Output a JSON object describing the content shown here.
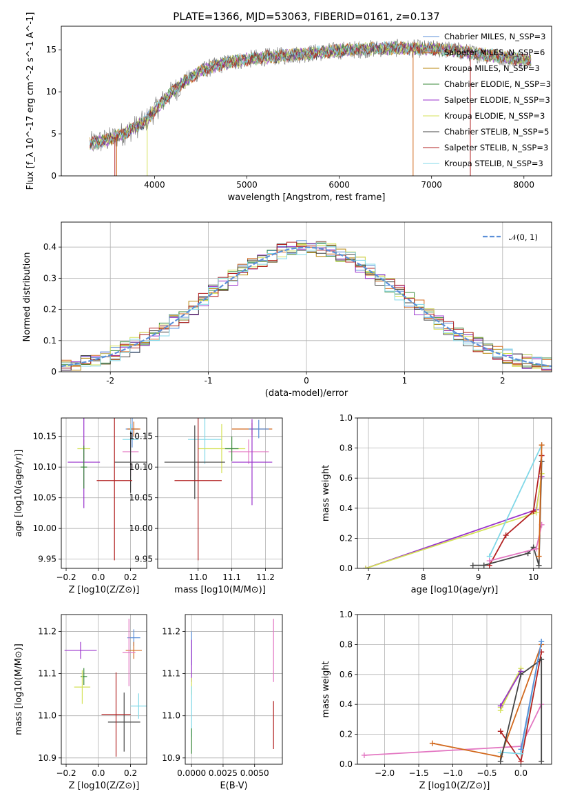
{
  "chart_data": [
    {
      "id": "spectrum",
      "type": "line",
      "title": "PLATE=1366, MJD=53063, FIBERID=0161, z=0.137",
      "xlabel": "wavelength [Angstrom, rest frame]",
      "ylabel": "Flux [f_λ 10^-17 erg cm^-2 s^-1 A^-1]",
      "xlim": [
        2990,
        8300
      ],
      "ylim": [
        0,
        17.8
      ],
      "xticks": [
        4000,
        5000,
        6000,
        7000,
        8000
      ],
      "yticks": [
        0,
        5,
        10,
        15
      ],
      "grid": false,
      "legend_position": "top-right",
      "continuum_x": [
        3300,
        3500,
        3700,
        3900,
        4100,
        4300,
        4500,
        4800,
        5100,
        5400,
        5700,
        6000,
        6300,
        6600,
        6900,
        7200,
        7500,
        7800,
        8080
      ],
      "continuum_y": [
        3.8,
        4.3,
        5.2,
        6.5,
        9.0,
        11.0,
        12.5,
        13.5,
        14.0,
        14.3,
        14.6,
        14.9,
        15.1,
        15.2,
        15.1,
        15.0,
        14.5,
        14.1,
        13.8
      ],
      "series": [
        {
          "name": "Chabrier MILES, N_SSP=3",
          "color": "#5b8fd8"
        },
        {
          "name": "Salpeter MILES, N_SSP=6",
          "color": "#d2691e"
        },
        {
          "name": "Kroupa MILES, N_SSP=3",
          "color": "#b8860b"
        },
        {
          "name": "Chabrier ELODIE, N_SSP=3",
          "color": "#3a8a3a"
        },
        {
          "name": "Salpeter ELODIE, N_SSP=3",
          "color": "#9932cc"
        },
        {
          "name": "Kroupa ELODIE, N_SSP=3",
          "color": "#d4e157"
        },
        {
          "name": "Chabrier STELIB, N_SSP=5",
          "color": "#444444"
        },
        {
          "name": "Salpeter STELIB, N_SSP=3",
          "color": "#b22222"
        },
        {
          "name": "Kroupa STELIB, N_SSP=3",
          "color": "#80d8e8"
        }
      ]
    },
    {
      "id": "residuals",
      "type": "line",
      "xlabel": "(data-model)/error",
      "ylabel": "Normed distribution",
      "xlim": [
        -2.5,
        2.5
      ],
      "ylim": [
        0,
        0.48
      ],
      "xticks": [
        -2,
        -1,
        0,
        1,
        2
      ],
      "yticks": [
        0.0,
        0.1,
        0.2,
        0.3,
        0.4
      ],
      "grid": true,
      "legend_position": "top-right",
      "legend": "𝒩(0, 1)",
      "gaussian_color": "#5b8fd8"
    },
    {
      "id": "age-vs-Z",
      "type": "scatter",
      "xlabel": "Z [log10(Z/Z⊙)]",
      "ylabel": "age [log10(age/yr)]",
      "xlim": [
        -0.23,
        0.3
      ],
      "ylim": [
        9.935,
        10.18
      ],
      "xticks": [
        -0.2,
        0.0,
        0.2
      ],
      "xticklabels": [
        "−0.2",
        "0.0",
        "0.2"
      ],
      "yticks": [
        9.95,
        10.0,
        10.05,
        10.1,
        10.15
      ],
      "yticklabels": [
        "9.95",
        "10.00",
        "10.05",
        "10.10",
        "10.15"
      ],
      "grid": true,
      "points": [
        {
          "x": 0.21,
          "y": 10.162,
          "xerr": 0.04,
          "yerr": 0.03,
          "color": "#5b8fd8"
        },
        {
          "x": 0.22,
          "y": 10.162,
          "xerr": 0.04,
          "yerr": 0.012,
          "color": "#d2691e"
        },
        {
          "x": 0.2,
          "y": 10.125,
          "xerr": 0.05,
          "yerr": 0.04,
          "color": "#e377c2"
        },
        {
          "x": 0.2,
          "y": 10.145,
          "xerr": 0.05,
          "yerr": 0.025,
          "color": "#80d8e8"
        },
        {
          "x": 0.2,
          "y": 10.108,
          "xerr": 0.1,
          "yerr": 0.05,
          "color": "#444444"
        },
        {
          "x": 0.1,
          "y": 10.078,
          "xerr": 0.11,
          "yerr": 0.13,
          "color": "#b22222"
        },
        {
          "x": -0.09,
          "y": 10.13,
          "xerr": 0.04,
          "yerr": 0.015,
          "color": "#d4e157"
        },
        {
          "x": -0.09,
          "y": 10.108,
          "xerr": 0.1,
          "yerr": 0.075,
          "color": "#9932cc"
        },
        {
          "x": -0.09,
          "y": 10.1,
          "xerr": 0.02,
          "yerr": 0.035,
          "color": "#3a8a3a"
        }
      ]
    },
    {
      "id": "age-vs-mass",
      "type": "scatter",
      "xlabel": "mass [log10(M/M⊙)]",
      "ylabel": "",
      "xlim": [
        10.88,
        11.25
      ],
      "ylim": [
        9.935,
        10.18
      ],
      "xticks": [
        11.0,
        11.1,
        11.2
      ],
      "xticklabels": [
        "11.0",
        "11.1",
        "11.2"
      ],
      "yticks": [
        9.95,
        10.0,
        10.05,
        10.1,
        10.15
      ],
      "yticklabels": [
        "9.95",
        "10.00",
        "10.05",
        "10.10",
        "10.15"
      ],
      "grid": true,
      "points": [
        {
          "x": 11.16,
          "y": 10.162,
          "xerr": 0.06,
          "yerr": 0.01,
          "color": "#d2691e"
        },
        {
          "x": 11.18,
          "y": 10.162,
          "xerr": 0.03,
          "yerr": 0.015,
          "color": "#5b8fd8"
        },
        {
          "x": 11.15,
          "y": 10.125,
          "xerr": 0.06,
          "yerr": 0.02,
          "color": "#e377c2"
        },
        {
          "x": 11.02,
          "y": 10.145,
          "xerr": 0.05,
          "yerr": 0.04,
          "color": "#80d8e8"
        },
        {
          "x": 11.07,
          "y": 10.13,
          "xerr": 0.07,
          "yerr": 0.04,
          "color": "#d4e157"
        },
        {
          "x": 11.1,
          "y": 10.13,
          "xerr": 0.02,
          "yerr": 0.02,
          "color": "#3a8a3a"
        },
        {
          "x": 11.16,
          "y": 10.108,
          "xerr": 0.06,
          "yerr": 0.07,
          "color": "#9932cc"
        },
        {
          "x": 10.99,
          "y": 10.108,
          "xerr": 0.09,
          "yerr": 0.06,
          "color": "#444444"
        },
        {
          "x": 11.0,
          "y": 10.078,
          "xerr": 0.07,
          "yerr": 0.13,
          "color": "#b22222"
        }
      ]
    },
    {
      "id": "weight-vs-age",
      "type": "line",
      "xlabel": "age [log10(age/yr)]",
      "ylabel": "mass weight",
      "xlim": [
        6.8,
        10.33
      ],
      "ylim": [
        0.0,
        1.0
      ],
      "xticks": [
        7,
        8,
        9,
        10
      ],
      "yticks": [
        0.0,
        0.2,
        0.4,
        0.6,
        0.8,
        1.0
      ],
      "yticklabels": [
        "0.0",
        "0.2",
        "0.4",
        "0.6",
        "0.8",
        "1.0"
      ],
      "grid": true,
      "series": [
        {
          "color": "#9932cc",
          "x": [
            6.95,
            10.05,
            10.15
          ],
          "y": [
            0.0,
            0.39,
            0.61
          ]
        },
        {
          "color": "#d4e157",
          "x": [
            6.95,
            10.05,
            10.15
          ],
          "y": [
            0.0,
            0.37,
            0.63
          ]
        },
        {
          "color": "#b22222",
          "x": [
            9.2,
            9.5,
            10.0,
            10.15
          ],
          "y": [
            0.02,
            0.22,
            0.38,
            0.75
          ]
        },
        {
          "color": "#80d8e8",
          "x": [
            9.2,
            10.15
          ],
          "y": [
            0.08,
            0.82
          ]
        },
        {
          "color": "#444444",
          "x": [
            8.9,
            9.1,
            9.9,
            10.0,
            10.1,
            10.15
          ],
          "y": [
            0.02,
            0.02,
            0.1,
            0.14,
            0.02,
            0.71
          ]
        },
        {
          "color": "#e377c2",
          "x": [
            9.2,
            10.05,
            10.15
          ],
          "y": [
            0.05,
            0.13,
            0.29
          ]
        },
        {
          "color": "#d2691e",
          "x": [
            10.1,
            10.15
          ],
          "y": [
            0.08,
            0.82
          ]
        }
      ]
    },
    {
      "id": "mass-vs-Z",
      "type": "scatter",
      "xlabel": "Z [log10(Z/Z⊙)]",
      "ylabel": "mass [log10(M/M⊙)]",
      "xlim": [
        -0.23,
        0.3
      ],
      "ylim": [
        10.885,
        11.24
      ],
      "xticks": [
        -0.2,
        0.0,
        0.2
      ],
      "xticklabels": [
        "−0.2",
        "0.0",
        "0.2"
      ],
      "yticks": [
        10.9,
        11.0,
        11.1,
        11.2
      ],
      "yticklabels": [
        "10.9",
        "11.0",
        "11.1",
        "11.2"
      ],
      "grid": true,
      "points": [
        {
          "x": 0.22,
          "y": 11.185,
          "xerr": 0.04,
          "yerr": 0.02,
          "color": "#5b8fd8"
        },
        {
          "x": 0.22,
          "y": 11.155,
          "xerr": 0.05,
          "yerr": 0.02,
          "color": "#d2691e"
        },
        {
          "x": 0.19,
          "y": 11.15,
          "xerr": 0.04,
          "yerr": 0.08,
          "color": "#e377c2"
        },
        {
          "x": 0.25,
          "y": 11.023,
          "xerr": 0.05,
          "yerr": 0.03,
          "color": "#80d8e8"
        },
        {
          "x": 0.16,
          "y": 10.985,
          "xerr": 0.1,
          "yerr": 0.07,
          "color": "#444444"
        },
        {
          "x": 0.11,
          "y": 11.003,
          "xerr": 0.09,
          "yerr": 0.1,
          "color": "#b22222"
        },
        {
          "x": -0.11,
          "y": 11.155,
          "xerr": 0.1,
          "yerr": 0.02,
          "color": "#9932cc"
        },
        {
          "x": -0.09,
          "y": 11.093,
          "xerr": 0.02,
          "yerr": 0.02,
          "color": "#3a8a3a"
        },
        {
          "x": -0.1,
          "y": 11.068,
          "xerr": 0.05,
          "yerr": 0.04,
          "color": "#d4e157"
        }
      ]
    },
    {
      "id": "mass-vs-ebv",
      "type": "scatter",
      "xlabel": "E(B-V)",
      "ylabel": "",
      "xlim": [
        -0.0005,
        0.0072
      ],
      "ylim": [
        10.885,
        11.24
      ],
      "xticks": [
        0.0,
        0.0025,
        0.005
      ],
      "xticklabels": [
        "0.0000",
        "0.0025",
        "0.0050"
      ],
      "yticks": [
        10.9,
        11.0,
        11.1,
        11.2
      ],
      "yticklabels": [
        "10.9",
        "11.0",
        "11.1",
        "11.2"
      ],
      "grid": true,
      "points": [
        {
          "x": 0.0,
          "y": 11.16,
          "xerr": 0.0,
          "yerr": 0.04,
          "color": "#5b8fd8"
        },
        {
          "x": 0.0,
          "y": 11.13,
          "xerr": 0.0,
          "yerr": 0.05,
          "color": "#9932cc"
        },
        {
          "x": 0.0,
          "y": 11.07,
          "xerr": 0.0,
          "yerr": 0.02,
          "color": "#d4e157"
        },
        {
          "x": 0.0,
          "y": 11.01,
          "xerr": 0.0,
          "yerr": 0.06,
          "color": "#80d8e8"
        },
        {
          "x": 0.0,
          "y": 10.94,
          "xerr": 0.0,
          "yerr": 0.03,
          "color": "#3a8a3a"
        },
        {
          "x": 0.0065,
          "y": 11.155,
          "xerr": 0.0,
          "yerr": 0.075,
          "color": "#e377c2"
        },
        {
          "x": 0.0065,
          "y": 10.978,
          "xerr": 0.0,
          "yerr": 0.057,
          "color": "#b22222"
        }
      ]
    },
    {
      "id": "weight-vs-Z",
      "type": "line",
      "xlabel": "Z [log10(Z/Z⊙)]",
      "ylabel": "mass weight",
      "xlim": [
        -2.4,
        0.45
      ],
      "ylim": [
        0.0,
        1.0
      ],
      "xticks": [
        -2.0,
        -1.5,
        -1.0,
        -0.5,
        0.0
      ],
      "xticklabels": [
        "−2.0",
        "−1.5",
        "−1.0",
        "−0.5",
        "0.0"
      ],
      "yticks": [
        0.0,
        0.2,
        0.4,
        0.6,
        0.8,
        1.0
      ],
      "yticklabels": [
        "0.0",
        "0.2",
        "0.4",
        "0.6",
        "0.8",
        "1.0"
      ],
      "grid": true,
      "series": [
        {
          "color": "#e377c2",
          "x": [
            -2.3,
            0.0,
            0.3
          ],
          "y": [
            0.06,
            0.12,
            0.4
          ]
        },
        {
          "color": "#d2691e",
          "x": [
            -1.3,
            -0.3,
            0.3
          ],
          "y": [
            0.14,
            0.05,
            0.8
          ]
        },
        {
          "color": "#d4e157",
          "x": [
            -0.3,
            0.0,
            -0.3
          ],
          "y": [
            0.38,
            0.64,
            0.36
          ]
        },
        {
          "color": "#9932cc",
          "x": [
            -0.3,
            0.0
          ],
          "y": [
            0.39,
            0.62
          ]
        },
        {
          "color": "#b22222",
          "x": [
            -0.3,
            0.0,
            0.3
          ],
          "y": [
            0.22,
            0.02,
            0.75
          ]
        },
        {
          "color": "#80d8e8",
          "x": [
            -0.3,
            0.0,
            0.3
          ],
          "y": [
            0.08,
            0.07,
            0.82
          ]
        },
        {
          "color": "#444444",
          "x": [
            -0.3,
            0.0,
            0.3,
            0.3
          ],
          "y": [
            0.02,
            0.6,
            0.7,
            0.02
          ]
        },
        {
          "color": "#5b8fd8",
          "x": [
            0.0,
            0.3
          ],
          "y": [
            0.1,
            0.82
          ]
        }
      ]
    }
  ]
}
